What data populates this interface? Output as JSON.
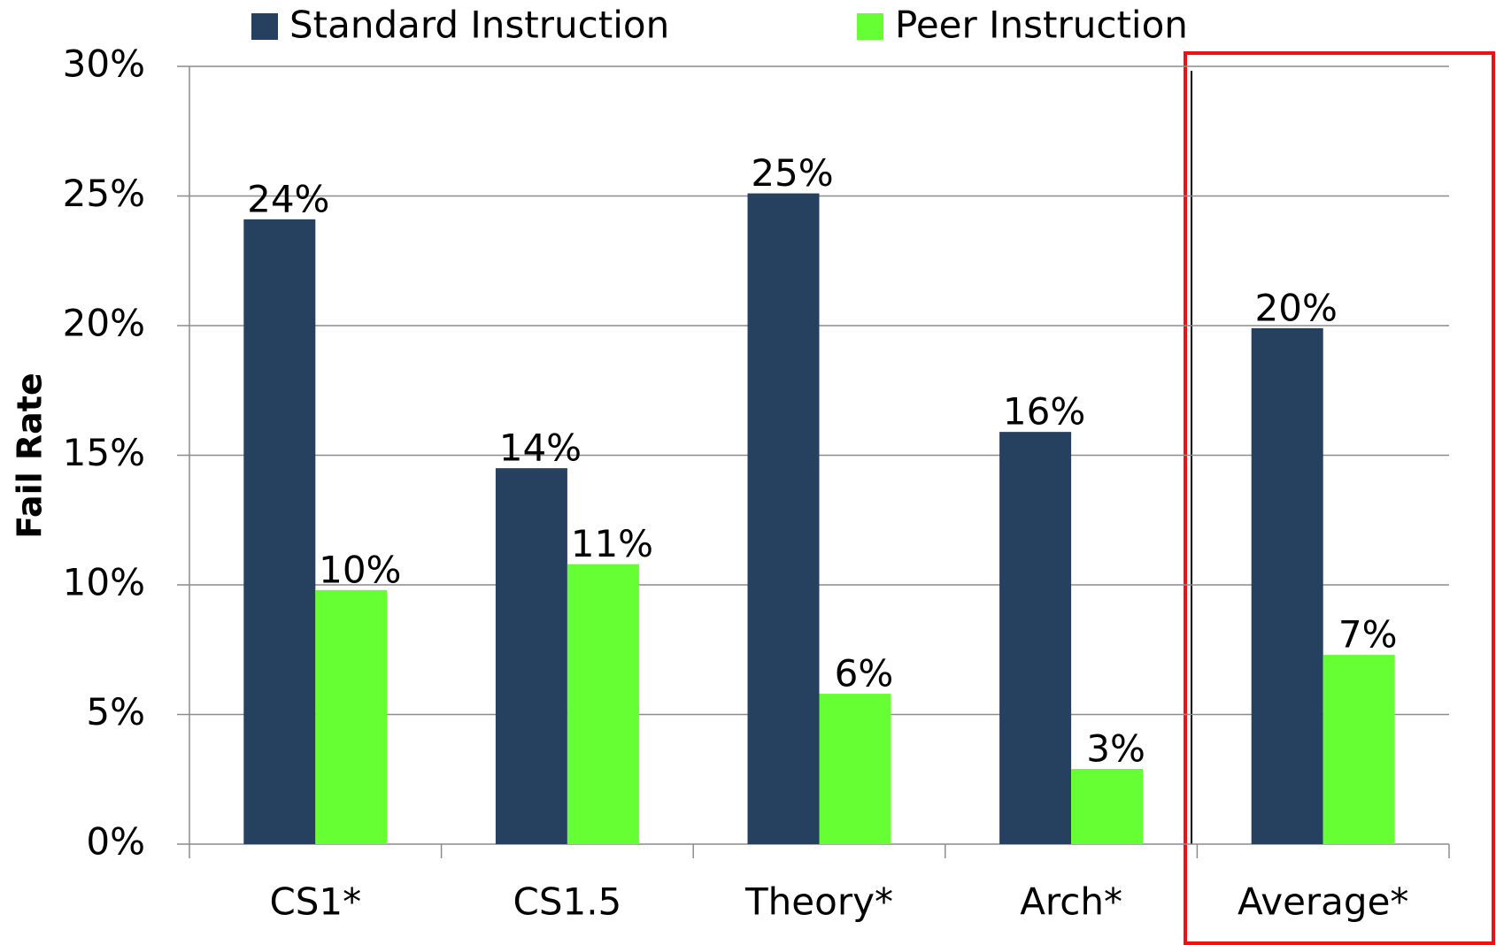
{
  "chart_data": {
    "type": "bar",
    "categories": [
      "CS1*",
      "CS1.5",
      "Theory*",
      "Arch*",
      "Average*"
    ],
    "series": [
      {
        "name": "Standard Instruction",
        "color": "#264060",
        "values": [
          24.1,
          14.5,
          25.1,
          15.9,
          19.9
        ],
        "value_labels": [
          "24%",
          "14%",
          "25%",
          "16%",
          "20%"
        ]
      },
      {
        "name": "Peer Instruction",
        "color": "#66ff33",
        "values": [
          9.8,
          10.8,
          5.8,
          2.9,
          7.3
        ],
        "value_labels": [
          "10%",
          "11%",
          "6%",
          "3%",
          "7%"
        ]
      }
    ],
    "ylabel": "Fail Rate",
    "ylim": [
      0,
      30
    ],
    "yticks": [
      {
        "value": 0,
        "label": "0%"
      },
      {
        "value": 5,
        "label": "5%"
      },
      {
        "value": 10,
        "label": "10%"
      },
      {
        "value": 15,
        "label": "15%"
      },
      {
        "value": 20,
        "label": "20%"
      },
      {
        "value": 25,
        "label": "25%"
      },
      {
        "value": 30,
        "label": "30%"
      }
    ],
    "grid": true,
    "legend": "top"
  }
}
